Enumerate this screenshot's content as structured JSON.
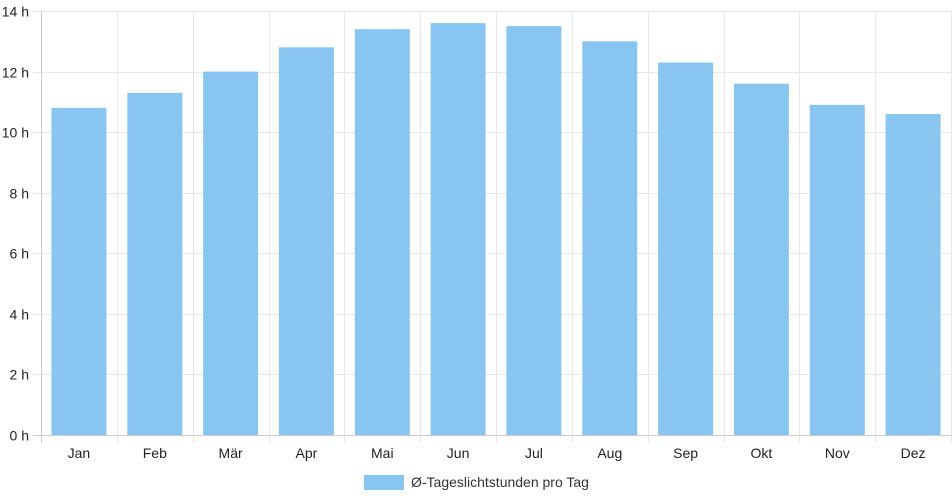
{
  "chart_data": {
    "type": "bar",
    "categories": [
      "Jan",
      "Feb",
      "Mär",
      "Apr",
      "Mai",
      "Jun",
      "Jul",
      "Aug",
      "Sep",
      "Okt",
      "Nov",
      "Dez"
    ],
    "series": [
      {
        "name": "Ø-Tageslichtstunden pro Tag",
        "values": [
          10.8,
          11.3,
          12.0,
          12.8,
          13.4,
          13.6,
          13.5,
          13.0,
          12.3,
          11.6,
          10.9,
          10.6
        ]
      }
    ],
    "y_ticks": [
      "0 h",
      "2 h",
      "4 h",
      "6 h",
      "8 h",
      "10 h",
      "12 h",
      "14 h"
    ],
    "ylim": [
      0,
      14
    ],
    "grid": true,
    "legend_position": "bottom",
    "colors": {
      "bar": "#88c6f1",
      "grid": "#e6e6e6",
      "axis": "#cccccc"
    }
  }
}
